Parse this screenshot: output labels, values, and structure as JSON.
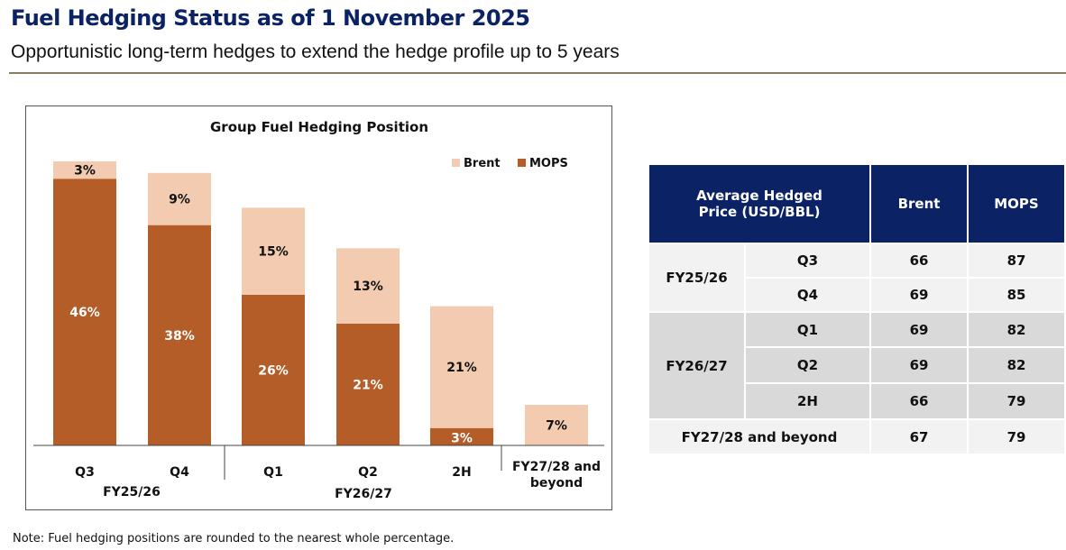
{
  "header": {
    "title": "Fuel Hedging Status as of 1 November 2025",
    "subtitle": "Opportunistic long-term hedges to extend the hedge profile up to 5 years"
  },
  "note": "Note: Fuel hedging positions are rounded to the nearest whole percentage.",
  "chart_data": {
    "type": "bar",
    "stacked": true,
    "title": "Group Fuel Hedging Position",
    "categories": [
      "Q3",
      "Q4",
      "Q1",
      "Q2",
      "2H",
      "FY27/28 and beyond"
    ],
    "groups": [
      {
        "label": "FY25/26",
        "categories": [
          "Q3",
          "Q4"
        ]
      },
      {
        "label": "FY26/27",
        "categories": [
          "Q1",
          "Q2",
          "2H"
        ]
      }
    ],
    "series": [
      {
        "name": "MOPS",
        "values": [
          46,
          38,
          26,
          21,
          3,
          0
        ],
        "color": "#b55d28"
      },
      {
        "name": "Brent",
        "values": [
          3,
          9,
          15,
          13,
          21,
          7
        ],
        "color": "#f2cbb0"
      }
    ],
    "legend": "top-right",
    "grid": false,
    "ylim": [
      0,
      50
    ]
  },
  "table": {
    "header": [
      "Average Hedged Price (USD/BBL)",
      "Brent",
      "MOPS"
    ],
    "rows": [
      {
        "group": "FY25/26",
        "period": "Q3",
        "brent": "66",
        "mops": "87"
      },
      {
        "group": "",
        "period": "Q4",
        "brent": "69",
        "mops": "85"
      },
      {
        "group": "FY26/27",
        "period": "Q1",
        "brent": "69",
        "mops": "82"
      },
      {
        "group": "",
        "period": "Q2",
        "brent": "69",
        "mops": "82"
      },
      {
        "group": "",
        "period": "2H",
        "brent": "66",
        "mops": "79"
      },
      {
        "group": "FY27/28 and beyond",
        "period": "",
        "brent": "67",
        "mops": "79"
      }
    ]
  }
}
